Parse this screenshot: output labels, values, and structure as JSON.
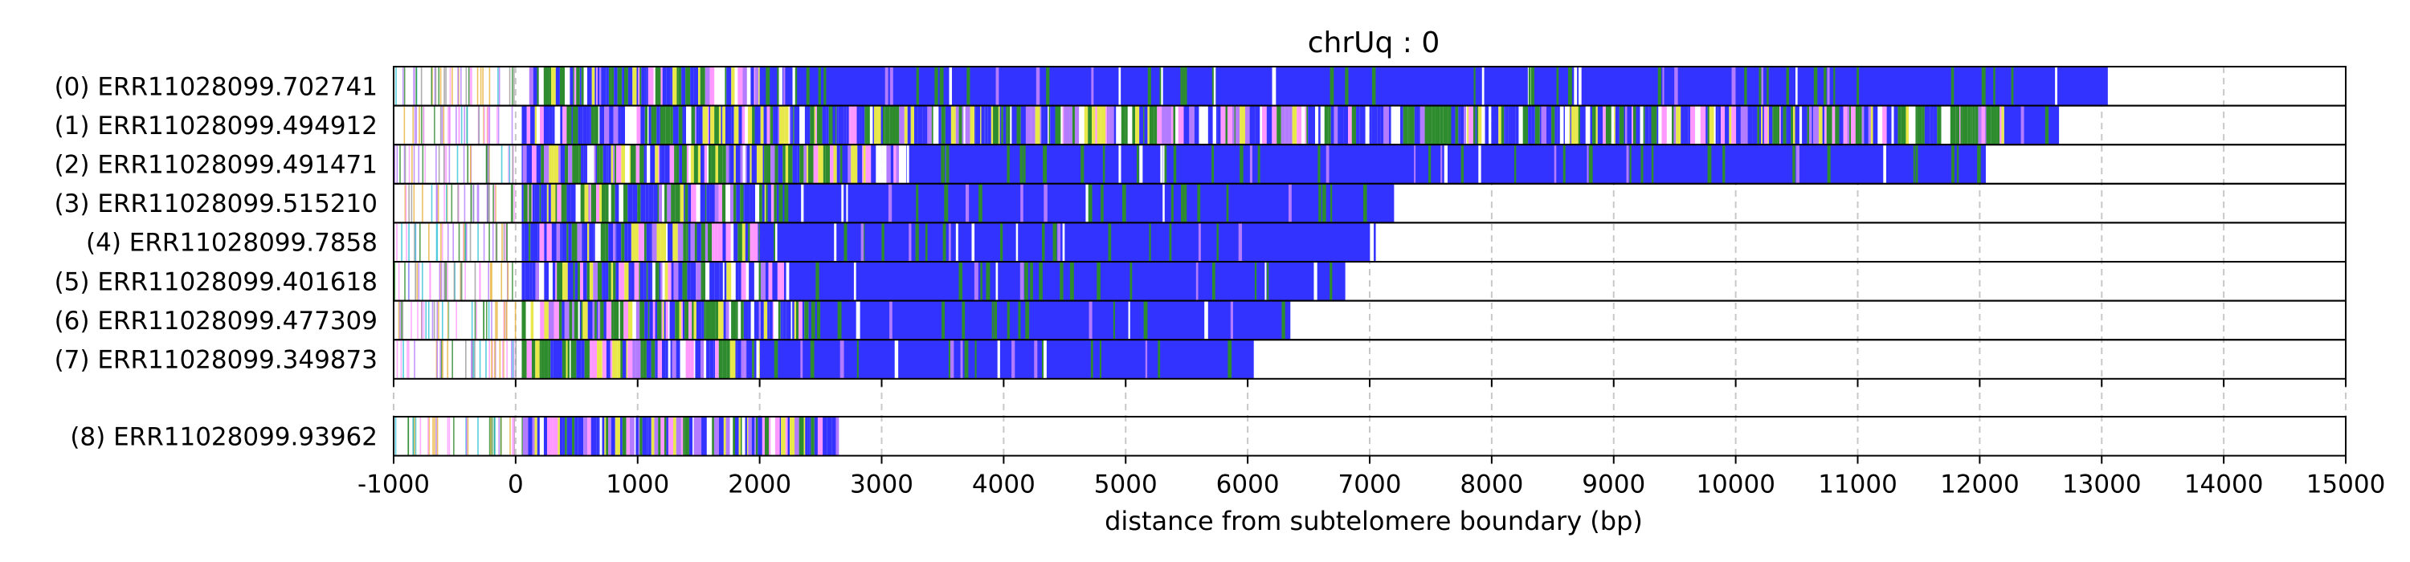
{
  "chart_data": {
    "type": "read-track",
    "title": "chrUq : 0",
    "xlabel": "distance from subtelomere boundary (bp)",
    "ylabel": "",
    "xlim": [
      -1000,
      15000
    ],
    "xticks": [
      -1000,
      0,
      1000,
      2000,
      3000,
      4000,
      5000,
      6000,
      7000,
      8000,
      9000,
      10000,
      11000,
      12000,
      13000,
      14000,
      15000
    ],
    "xtick_labels": [
      "-1000",
      "0",
      "1000",
      "2000",
      "3000",
      "4000",
      "5000",
      "6000",
      "7000",
      "8000",
      "9000",
      "10000",
      "11000",
      "12000",
      "13000",
      "14000",
      "15000"
    ],
    "grid": "vertical dashed",
    "colors": {
      "telomeric_blue": "#3333ff",
      "green": "#2e8b2e",
      "yellow": "#e8e84a",
      "violet": "#b37bff",
      "pink": "#ff99ff",
      "cyan": "#33c2d6",
      "gray": "#999999",
      "gold": "#e8b23a"
    },
    "groups": [
      {
        "reads": [
          {
            "label": "(0) ERR11028099.702741",
            "start": -1000,
            "end": 13050,
            "blue_from": 2000
          },
          {
            "label": "(1) ERR11028099.494912",
            "start": -1000,
            "end": 12650,
            "blue_from": 12200
          },
          {
            "label": "(2) ERR11028099.491471",
            "start": -1000,
            "end": 12050,
            "blue_from": 3200
          },
          {
            "label": "(3) ERR11028099.515210",
            "start": -1000,
            "end": 7200,
            "blue_from": 2200
          },
          {
            "label": "(4) ERR11028099.7858",
            "start": -1000,
            "end": 7050,
            "blue_from": 2000
          },
          {
            "label": "(5) ERR11028099.401618",
            "start": -1000,
            "end": 6800,
            "blue_from": 2200
          },
          {
            "label": "(6) ERR11028099.477309",
            "start": -1000,
            "end": 6350,
            "blue_from": 2400
          },
          {
            "label": "(7) ERR11028099.349873",
            "start": -1000,
            "end": 6050,
            "blue_from": 2000
          }
        ]
      },
      {
        "reads": [
          {
            "label": "(8) ERR11028099.93962",
            "start": -1000,
            "end": 2650,
            "blue_from": 2650
          }
        ]
      }
    ]
  }
}
